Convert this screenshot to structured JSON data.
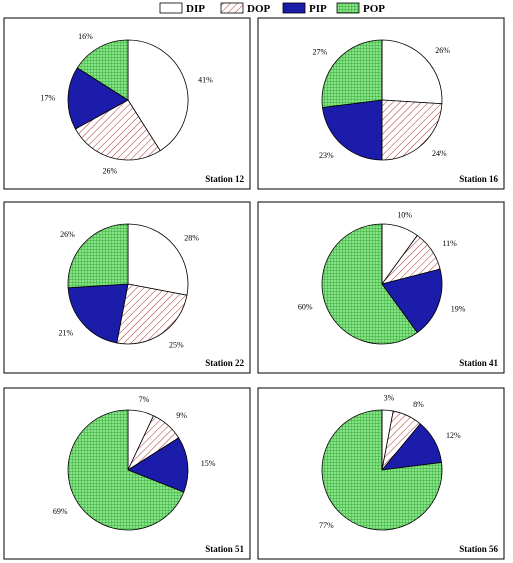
{
  "legend": {
    "items": [
      {
        "key": "DIP",
        "label": "DIP"
      },
      {
        "key": "DOP",
        "label": "DOP"
      },
      {
        "key": "PIP",
        "label": "PIP"
      },
      {
        "key": "POP",
        "label": "POP"
      }
    ]
  },
  "colors": {
    "DIP": "#ffffff",
    "DOP_hatch": "#b03030",
    "PIP": "#1c1caa",
    "POP_base": "#7fe07f",
    "POP_grid": "#1f9a1f"
  },
  "chart_data": [
    {
      "type": "pie",
      "title": "Station 12",
      "categories": [
        "DIP",
        "DOP",
        "PIP",
        "POP"
      ],
      "values": [
        41,
        26,
        17,
        16
      ],
      "labels": [
        "41%",
        "26%",
        "17%",
        "16%"
      ]
    },
    {
      "type": "pie",
      "title": "Station 16",
      "categories": [
        "DIP",
        "DOP",
        "PIP",
        "POP"
      ],
      "values": [
        26,
        24,
        23,
        27
      ],
      "labels": [
        "26%",
        "24%",
        "23%",
        "27%"
      ]
    },
    {
      "type": "pie",
      "title": "Station 22",
      "categories": [
        "DIP",
        "DOP",
        "PIP",
        "POP"
      ],
      "values": [
        28,
        25,
        21,
        26
      ],
      "labels": [
        "28%",
        "25%",
        "21%",
        "26%"
      ]
    },
    {
      "type": "pie",
      "title": "Station 41",
      "categories": [
        "DIP",
        "DOP",
        "PIP",
        "POP"
      ],
      "values": [
        10,
        11,
        19,
        60
      ],
      "labels": [
        "10%",
        "11%",
        "19%",
        "60%"
      ]
    },
    {
      "type": "pie",
      "title": "Station 51",
      "categories": [
        "DIP",
        "DOP",
        "PIP",
        "POP"
      ],
      "values": [
        7,
        9,
        15,
        69
      ],
      "labels": [
        "7%",
        "9%",
        "15%",
        "69%"
      ]
    },
    {
      "type": "pie",
      "title": "Station 56",
      "categories": [
        "DIP",
        "DOP",
        "PIP",
        "POP"
      ],
      "values": [
        3,
        8,
        12,
        77
      ],
      "labels": [
        "3%",
        "8%",
        "12%",
        "77%"
      ]
    }
  ]
}
